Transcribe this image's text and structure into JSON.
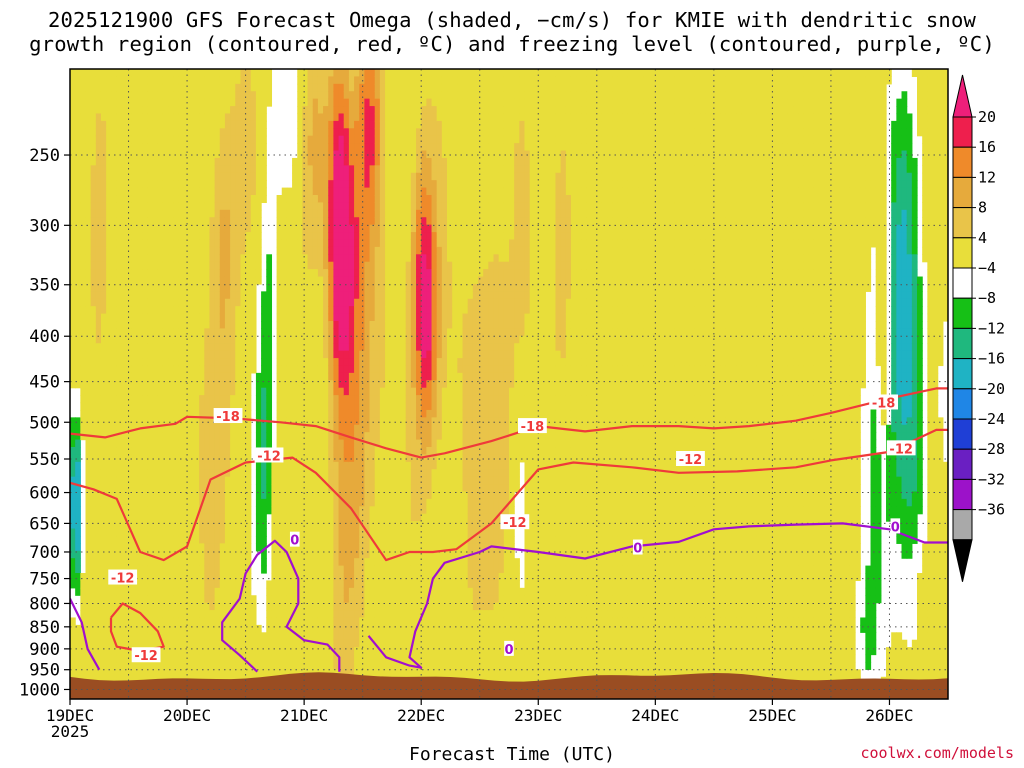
{
  "title": {
    "line1": "2025121900 GFS Forecast Omega (shaded, −cm/s) for KMIE with dendritic snow",
    "line2": "growth region (contoured, red, ºC) and freezing level (contoured, purple, ºC)"
  },
  "credit": "coolwx.com/models",
  "chart_data": {
    "type": "heatmap",
    "xlabel": "Forecast Time (UTC)",
    "ylabel": "",
    "x_ticks": [
      "19DEC",
      "20DEC",
      "21DEC",
      "22DEC",
      "23DEC",
      "24DEC",
      "25DEC",
      "26DEC"
    ],
    "x_year": "2025",
    "x_range_days": [
      0,
      7.5
    ],
    "y_ticks": [
      250,
      300,
      350,
      400,
      450,
      500,
      550,
      600,
      650,
      700,
      750,
      800,
      850,
      900,
      950,
      1000
    ],
    "y_range_hpa": [
      200,
      1025
    ],
    "y_scale": "log-pressure",
    "colorbar": {
      "labels": [
        "20",
        "16",
        "12",
        "8",
        "4",
        "−4",
        "−8",
        "−12",
        "−16",
        "−20",
        "−24",
        "−28",
        "−32",
        "−36"
      ],
      "bounds": [
        20,
        16,
        12,
        8,
        4,
        -4,
        -8,
        -12,
        -16,
        -20,
        -24,
        -28,
        -32,
        -36
      ],
      "colors": [
        "#ee1f4d",
        "#ef8a2a",
        "#e6aa3c",
        "#e9c449",
        "#e8de3a",
        "#ffffff",
        "#16c016",
        "#1fb87e",
        "#1fb3c4",
        "#1f86e6",
        "#1f3fd6",
        "#6a1fc2",
        "#9c12c9",
        "#a9a9a9"
      ],
      "over_color": "#ee1f7a",
      "under_color": "#000000"
    },
    "terrain_color": "#9a4d22",
    "dgz_contours": {
      "color": "#ef3a3a",
      "labels": [
        "-18",
        "-12"
      ],
      "upper_minus18": [
        [
          0.0,
          515
        ],
        [
          0.3,
          520
        ],
        [
          0.6,
          508
        ],
        [
          0.9,
          502
        ],
        [
          1.0,
          493
        ],
        [
          1.4,
          495
        ],
        [
          1.8,
          500
        ],
        [
          2.1,
          505
        ],
        [
          2.4,
          520
        ],
        [
          2.7,
          535
        ],
        [
          3.0,
          548
        ],
        [
          3.2,
          542
        ],
        [
          3.6,
          525
        ],
        [
          4.0,
          505
        ],
        [
          4.4,
          512
        ],
        [
          4.8,
          505
        ],
        [
          5.2,
          505
        ],
        [
          5.5,
          508
        ],
        [
          5.8,
          505
        ],
        [
          6.2,
          498
        ],
        [
          6.5,
          488
        ],
        [
          7.0,
          470
        ],
        [
          7.4,
          458
        ],
        [
          7.5,
          458
        ]
      ],
      "lower_minus12": [
        [
          0.0,
          585
        ],
        [
          0.2,
          595
        ],
        [
          0.4,
          610
        ],
        [
          0.6,
          700
        ],
        [
          0.8,
          715
        ],
        [
          1.0,
          690
        ],
        [
          1.2,
          580
        ],
        [
          1.5,
          555
        ],
        [
          1.9,
          548
        ],
        [
          2.1,
          570
        ],
        [
          2.4,
          625
        ],
        [
          2.7,
          715
        ],
        [
          2.9,
          700
        ],
        [
          3.1,
          700
        ],
        [
          3.3,
          695
        ],
        [
          3.6,
          650
        ],
        [
          4.0,
          565
        ],
        [
          4.3,
          555
        ],
        [
          4.8,
          562
        ],
        [
          5.2,
          570
        ],
        [
          5.7,
          568
        ],
        [
          6.2,
          562
        ],
        [
          6.5,
          552
        ],
        [
          7.0,
          540
        ],
        [
          7.4,
          510
        ],
        [
          7.5,
          510
        ]
      ],
      "loop_minus12": [
        [
          0.35,
          830
        ],
        [
          0.45,
          800
        ],
        [
          0.6,
          820
        ],
        [
          0.75,
          860
        ],
        [
          0.8,
          895
        ],
        [
          0.6,
          905
        ],
        [
          0.4,
          895
        ],
        [
          0.35,
          860
        ],
        [
          0.35,
          830
        ]
      ]
    },
    "freezing_contours": {
      "color": "#a10fcf",
      "labels": [
        "0"
      ],
      "left_edge": [
        [
          0.0,
          790
        ],
        [
          0.1,
          840
        ],
        [
          0.15,
          900
        ],
        [
          0.25,
          950
        ]
      ],
      "loop_day1": [
        [
          1.6,
          955
        ],
        [
          1.45,
          915
        ],
        [
          1.3,
          880
        ],
        [
          1.3,
          840
        ],
        [
          1.45,
          790
        ],
        [
          1.5,
          740
        ],
        [
          1.6,
          705
        ],
        [
          1.75,
          680
        ],
        [
          1.85,
          700
        ],
        [
          1.95,
          750
        ],
        [
          1.95,
          800
        ],
        [
          1.85,
          850
        ],
        [
          2.0,
          880
        ],
        [
          2.2,
          890
        ],
        [
          2.3,
          920
        ],
        [
          2.3,
          955
        ]
      ],
      "lower_day3": [
        [
          2.55,
          870
        ],
        [
          2.7,
          920
        ],
        [
          2.9,
          940
        ],
        [
          3.0,
          945
        ],
        [
          2.9,
          920
        ],
        [
          2.95,
          860
        ],
        [
          3.05,
          800
        ],
        [
          3.1,
          750
        ],
        [
          3.2,
          720
        ],
        [
          3.5,
          700
        ],
        [
          3.6,
          690
        ],
        [
          4.0,
          700
        ],
        [
          4.4,
          712
        ],
        [
          4.8,
          690
        ],
        [
          5.2,
          682
        ],
        [
          5.5,
          660
        ],
        [
          5.8,
          655
        ],
        [
          6.2,
          652
        ],
        [
          6.6,
          650
        ],
        [
          7.0,
          660
        ],
        [
          7.3,
          683
        ],
        [
          7.5,
          683
        ]
      ]
    }
  }
}
